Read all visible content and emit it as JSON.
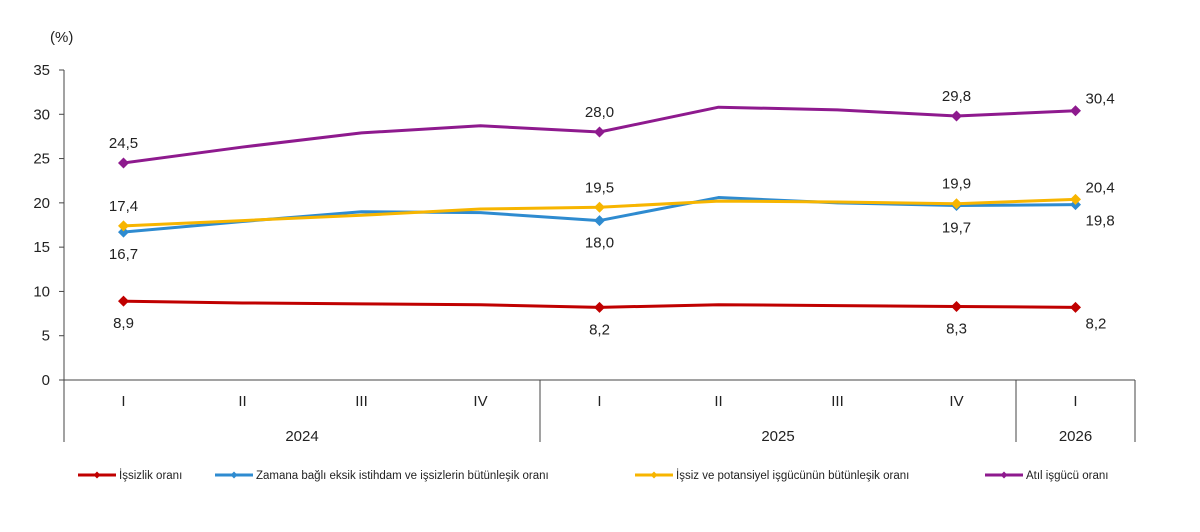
{
  "chart_data": {
    "type": "line",
    "unit_label": "(%)",
    "ylim": [
      0,
      35
    ],
    "y_ticks": [
      "0",
      "5",
      "10",
      "15",
      "20",
      "25",
      "30",
      "35"
    ],
    "quarters": [
      "I",
      "II",
      "III",
      "IV",
      "I",
      "II",
      "III",
      "IV",
      "I"
    ],
    "years": [
      {
        "label": "2024",
        "start": 0,
        "end": 3
      },
      {
        "label": "2025",
        "start": 4,
        "end": 7
      },
      {
        "label": "2026",
        "start": 8,
        "end": 8
      }
    ],
    "grid": false,
    "legend_position": "bottom",
    "series": [
      {
        "name": "İşsizlik oranı",
        "color": "#c00000",
        "values": [
          8.9,
          8.7,
          8.6,
          8.5,
          8.2,
          8.5,
          8.4,
          8.3,
          8.2
        ],
        "labels": [
          {
            "index": 0,
            "text": "8,9",
            "pos": "below"
          },
          {
            "index": 4,
            "text": "8,2",
            "pos": "below"
          },
          {
            "index": 7,
            "text": "8,3",
            "pos": "below"
          },
          {
            "index": 8,
            "text": "8,2",
            "pos": "below-right"
          }
        ]
      },
      {
        "name": "Zamana bağlı eksik istihdam ve işsizlerin bütünleşik oranı",
        "color": "#2e8bd0",
        "values": [
          16.7,
          17.9,
          19.0,
          18.9,
          18.0,
          20.6,
          20.0,
          19.7,
          19.8
        ],
        "labels": [
          {
            "index": 0,
            "text": "16,7",
            "pos": "below"
          },
          {
            "index": 4,
            "text": "18,0",
            "pos": "below"
          },
          {
            "index": 7,
            "text": "19,7",
            "pos": "below"
          },
          {
            "index": 8,
            "text": "19,8",
            "pos": "below-right"
          }
        ]
      },
      {
        "name": "İşsiz ve potansiyel işgücünün bütünleşik oranı",
        "color": "#f7b500",
        "values": [
          17.4,
          18.0,
          18.6,
          19.3,
          19.5,
          20.2,
          20.1,
          19.9,
          20.4
        ],
        "labels": [
          {
            "index": 0,
            "text": "17,4",
            "pos": "above"
          },
          {
            "index": 4,
            "text": "19,5",
            "pos": "above"
          },
          {
            "index": 7,
            "text": "19,9",
            "pos": "above"
          },
          {
            "index": 8,
            "text": "20,4",
            "pos": "above-right"
          }
        ]
      },
      {
        "name": "Atıl işgücü oranı",
        "color": "#8e1a8e",
        "values": [
          24.5,
          26.3,
          27.9,
          28.7,
          28.0,
          30.8,
          30.5,
          29.8,
          30.4
        ],
        "labels": [
          {
            "index": 0,
            "text": "24,5",
            "pos": "above"
          },
          {
            "index": 4,
            "text": "28,0",
            "pos": "above"
          },
          {
            "index": 7,
            "text": "29,8",
            "pos": "above"
          },
          {
            "index": 8,
            "text": "30,4",
            "pos": "above-right"
          }
        ]
      }
    ]
  }
}
